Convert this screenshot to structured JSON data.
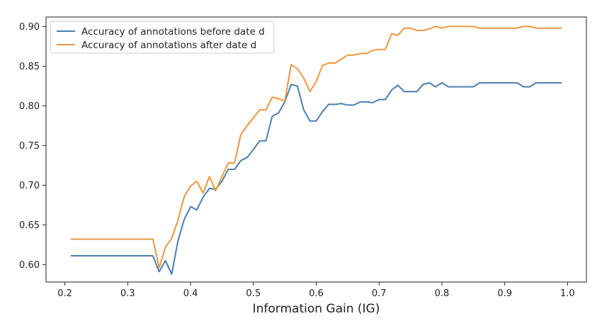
{
  "chart_data": {
    "type": "line",
    "title": "",
    "xlabel": "Information Gain (IG)",
    "ylabel": "",
    "xlim": [
      0.17,
      1.03
    ],
    "ylim": [
      0.578,
      0.912
    ],
    "xticks": [
      0.2,
      0.3,
      0.4,
      0.5,
      0.6,
      0.7,
      0.8,
      0.9,
      1.0
    ],
    "xtick_labels": [
      "0.2",
      "0.3",
      "0.4",
      "0.5",
      "0.6",
      "0.7",
      "0.8",
      "0.9",
      "1.0"
    ],
    "yticks": [
      0.6,
      0.65,
      0.7,
      0.75,
      0.8,
      0.85,
      0.9
    ],
    "ytick_labels": [
      "0.60",
      "0.65",
      "0.70",
      "0.75",
      "0.80",
      "0.85",
      "0.90"
    ],
    "grid": false,
    "legend_position": "top-left",
    "x": [
      0.21,
      0.22,
      0.23,
      0.24,
      0.25,
      0.26,
      0.27,
      0.28,
      0.29,
      0.3,
      0.31,
      0.32,
      0.33,
      0.34,
      0.35,
      0.36,
      0.37,
      0.38,
      0.39,
      0.4,
      0.41,
      0.42,
      0.43,
      0.44,
      0.45,
      0.46,
      0.47,
      0.48,
      0.49,
      0.5,
      0.51,
      0.52,
      0.53,
      0.54,
      0.55,
      0.56,
      0.57,
      0.58,
      0.59,
      0.6,
      0.61,
      0.62,
      0.63,
      0.64,
      0.65,
      0.66,
      0.67,
      0.68,
      0.69,
      0.7,
      0.71,
      0.72,
      0.73,
      0.74,
      0.75,
      0.76,
      0.77,
      0.78,
      0.79,
      0.8,
      0.81,
      0.82,
      0.83,
      0.84,
      0.85,
      0.86,
      0.87,
      0.88,
      0.89,
      0.9,
      0.91,
      0.92,
      0.93,
      0.94,
      0.95,
      0.96,
      0.97,
      0.98,
      0.99
    ],
    "series": [
      {
        "name": "Accuracy of annotations before date d",
        "color": "#4a7fb0",
        "values": [
          0.611,
          0.611,
          0.611,
          0.611,
          0.611,
          0.611,
          0.611,
          0.611,
          0.611,
          0.611,
          0.611,
          0.611,
          0.611,
          0.611,
          0.591,
          0.605,
          0.588,
          0.63,
          0.657,
          0.673,
          0.669,
          0.685,
          0.696,
          0.695,
          0.705,
          0.72,
          0.72,
          0.731,
          0.735,
          0.745,
          0.756,
          0.756,
          0.787,
          0.791,
          0.805,
          0.827,
          0.825,
          0.795,
          0.781,
          0.781,
          0.793,
          0.802,
          0.802,
          0.803,
          0.801,
          0.801,
          0.805,
          0.805,
          0.804,
          0.808,
          0.808,
          0.82,
          0.826,
          0.818,
          0.818,
          0.818,
          0.827,
          0.829,
          0.824,
          0.829,
          0.824,
          0.824,
          0.824,
          0.824,
          0.824,
          0.829,
          0.829,
          0.829,
          0.829,
          0.829,
          0.829,
          0.829,
          0.824,
          0.824,
          0.829,
          0.829,
          0.829,
          0.829,
          0.829
        ]
      },
      {
        "name": "Accuracy of annotations after date d",
        "color": "#ef9641",
        "values": [
          0.632,
          0.632,
          0.632,
          0.632,
          0.632,
          0.632,
          0.632,
          0.632,
          0.632,
          0.632,
          0.632,
          0.632,
          0.632,
          0.632,
          0.596,
          0.622,
          0.633,
          0.656,
          0.686,
          0.699,
          0.705,
          0.69,
          0.711,
          0.693,
          0.711,
          0.728,
          0.728,
          0.764,
          0.775,
          0.785,
          0.795,
          0.795,
          0.811,
          0.809,
          0.806,
          0.852,
          0.847,
          0.835,
          0.818,
          0.831,
          0.851,
          0.854,
          0.854,
          0.859,
          0.864,
          0.864,
          0.866,
          0.866,
          0.87,
          0.871,
          0.871,
          0.891,
          0.889,
          0.898,
          0.898,
          0.895,
          0.895,
          0.897,
          0.9,
          0.898,
          0.9,
          0.9,
          0.9,
          0.9,
          0.9,
          0.898,
          0.898,
          0.898,
          0.898,
          0.898,
          0.898,
          0.898,
          0.9,
          0.9,
          0.898,
          0.898,
          0.898,
          0.898,
          0.898
        ]
      }
    ]
  }
}
